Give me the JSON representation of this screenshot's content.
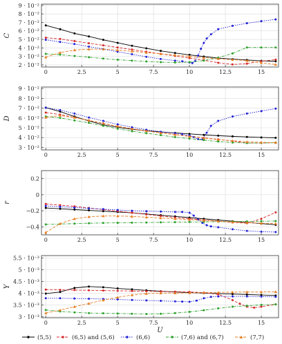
{
  "chart_data": [
    {
      "type": "line",
      "ylabel": "C",
      "xlabel": "",
      "xlim": [
        -0.3,
        16.2
      ],
      "ylim": [
        0.0175,
        0.0915
      ],
      "xticks": [
        0,
        2.5,
        5,
        7.5,
        10,
        12.5,
        15
      ],
      "xtick_labels": [
        "0",
        "2.5",
        "5",
        "7.5",
        "10",
        "12.5",
        "15"
      ],
      "yticks": [
        0.02,
        0.03,
        0.04,
        0.05,
        0.06,
        0.07,
        0.08,
        0.09
      ],
      "ytick_labels": [
        "2 · 10⁻²",
        "3 · 10⁻²",
        "4 · 10⁻²",
        "5 · 10⁻²",
        "6 · 10⁻²",
        "7 · 10⁻²",
        "8 · 10⁻²",
        "9 · 10⁻²"
      ],
      "grid": true,
      "series": [
        {
          "name": "(5,5)",
          "x": [
            0,
            1,
            2,
            3,
            4,
            5,
            6,
            7,
            8,
            9,
            10,
            11,
            12,
            13,
            14,
            15,
            16
          ],
          "y": [
            0.0665,
            0.062,
            0.057,
            0.0535,
            0.0495,
            0.046,
            0.0425,
            0.0395,
            0.0365,
            0.034,
            0.0318,
            0.0298,
            0.028,
            0.0268,
            0.0258,
            0.0248,
            0.0242
          ]
        },
        {
          "name": "(6,5) and (5,6)",
          "x": [
            0,
            1,
            2,
            3,
            4,
            5,
            6,
            7,
            8,
            9,
            10,
            11,
            12,
            13,
            14,
            15,
            16
          ],
          "y": [
            0.052,
            0.0505,
            0.048,
            0.0455,
            0.043,
            0.0405,
            0.038,
            0.0355,
            0.033,
            0.0305,
            0.028,
            0.0255,
            0.0225,
            0.0205,
            0.0215,
            0.0242,
            0.0262
          ]
        },
        {
          "name": "(6,6)",
          "x": [
            0,
            1,
            2,
            3,
            4,
            5,
            6,
            7,
            8,
            9,
            9.5,
            10,
            10.2,
            10.4,
            10.6,
            10.8,
            11,
            11.2,
            11.5,
            12,
            13,
            14,
            15,
            16
          ],
          "y": [
            0.0495,
            0.047,
            0.0445,
            0.0415,
            0.0385,
            0.0355,
            0.0325,
            0.0295,
            0.027,
            0.025,
            0.0242,
            0.0228,
            0.0222,
            0.0245,
            0.031,
            0.039,
            0.046,
            0.051,
            0.056,
            0.062,
            0.066,
            0.069,
            0.0715,
            0.0735
          ]
        },
        {
          "name": "(7,6) and (6,7)",
          "x": [
            0,
            1,
            2,
            3,
            4,
            5,
            6,
            7,
            8,
            9,
            10,
            11,
            12,
            13,
            14,
            15,
            16
          ],
          "y": [
            0.033,
            0.032,
            0.0305,
            0.029,
            0.0275,
            0.026,
            0.025,
            0.024,
            0.0232,
            0.0228,
            0.0232,
            0.025,
            0.0285,
            0.0335,
            0.0405,
            0.0405,
            0.0405
          ]
        },
        {
          "name": "(7,7)",
          "x": [
            0,
            1,
            2,
            3,
            4,
            5,
            6,
            7,
            8,
            9,
            10,
            11,
            12,
            13,
            14,
            15,
            16
          ],
          "y": [
            0.029,
            0.0345,
            0.0375,
            0.0385,
            0.0385,
            0.0375,
            0.036,
            0.0345,
            0.033,
            0.0315,
            0.03,
            0.0285,
            0.0272,
            0.0262,
            0.025,
            0.0225,
            0.0205
          ]
        }
      ]
    },
    {
      "type": "line",
      "ylabel": "D",
      "xlabel": "",
      "xlim": [
        -0.3,
        16.2
      ],
      "ylim": [
        0.0275,
        0.0915
      ],
      "xticks": [
        0,
        2.5,
        5,
        7.5,
        10,
        12.5,
        15
      ],
      "xtick_labels": [
        "0",
        "2.5",
        "5",
        "7.5",
        "10",
        "12.5",
        "15"
      ],
      "yticks": [
        0.03,
        0.04,
        0.05,
        0.06,
        0.07,
        0.08,
        0.09
      ],
      "ytick_labels": [
        "3 · 10⁻²",
        "4 · 10⁻²",
        "5 · 10⁻²",
        "6 · 10⁻²",
        "7 · 10⁻²",
        "8 · 10⁻²",
        "9 · 10⁻²"
      ],
      "grid": true,
      "series": [
        {
          "name": "(5,5)",
          "x": [
            0,
            1,
            2,
            3,
            4,
            5,
            6,
            7,
            8,
            9,
            10,
            11,
            12,
            13,
            14,
            15,
            16
          ],
          "y": [
            0.0705,
            0.0665,
            0.0615,
            0.057,
            0.053,
            0.0505,
            0.0485,
            0.047,
            0.0458,
            0.0448,
            0.0438,
            0.0428,
            0.042,
            0.0413,
            0.0407,
            0.0402,
            0.0398
          ]
        },
        {
          "name": "(6,5) and (5,6)",
          "x": [
            0,
            1,
            2,
            3,
            4,
            5,
            6,
            7,
            8,
            9,
            10,
            11,
            12,
            13,
            14,
            15,
            16
          ],
          "y": [
            0.0655,
            0.0635,
            0.0605,
            0.0575,
            0.0545,
            0.0515,
            0.049,
            0.0468,
            0.045,
            0.0432,
            0.0415,
            0.0398,
            0.0382,
            0.0365,
            0.0345,
            0.0345,
            0.035
          ]
        },
        {
          "name": "(6,6)",
          "x": [
            0,
            1,
            2,
            3,
            4,
            5,
            6,
            7,
            8,
            9,
            9.5,
            10,
            10.3,
            10.6,
            10.9,
            11.2,
            11.5,
            12,
            13,
            14,
            15,
            16
          ],
          "y": [
            0.0705,
            0.068,
            0.0645,
            0.0605,
            0.057,
            0.0535,
            0.0505,
            0.048,
            0.046,
            0.0445,
            0.0435,
            0.0422,
            0.0405,
            0.0385,
            0.0382,
            0.045,
            0.052,
            0.057,
            0.0615,
            0.0645,
            0.067,
            0.0695
          ]
        },
        {
          "name": "(7,6) and (6,7)",
          "x": [
            0,
            1,
            2,
            3,
            4,
            5,
            6,
            7,
            8,
            9,
            10,
            11,
            12,
            13,
            14,
            15,
            16
          ],
          "y": [
            0.0615,
            0.06,
            0.0575,
            0.055,
            0.052,
            0.049,
            0.0465,
            0.0445,
            0.0425,
            0.0405,
            0.039,
            0.0375,
            0.036,
            0.035,
            0.0345,
            0.0345,
            0.0348
          ]
        },
        {
          "name": "(7,7)",
          "x": [
            0,
            1,
            2,
            3,
            4,
            5,
            6,
            7,
            8,
            9,
            10,
            11,
            12,
            13,
            14,
            15,
            16
          ],
          "y": [
            0.0605,
            0.0625,
            0.0605,
            0.0575,
            0.0545,
            0.0515,
            0.049,
            0.0468,
            0.0448,
            0.043,
            0.0412,
            0.0395,
            0.038,
            0.0368,
            0.0358,
            0.0352,
            0.0348
          ]
        }
      ]
    },
    {
      "type": "line",
      "ylabel": "r",
      "xlabel": "",
      "xlim": [
        -0.3,
        16.2
      ],
      "ylim": [
        -0.5,
        0.3
      ],
      "xticks": [
        0,
        2.5,
        5,
        7.5,
        10,
        12.5,
        15
      ],
      "xtick_labels": [
        "0",
        "2.5",
        "5",
        "7.5",
        "10",
        "12.5",
        "15"
      ],
      "yticks": [
        -0.4,
        -0.2,
        0,
        0.2
      ],
      "ytick_labels": [
        "−0.4",
        "−0.2",
        "0",
        "0.2"
      ],
      "grid": true,
      "series": [
        {
          "name": "(5,5)",
          "x": [
            0,
            1,
            2,
            3,
            4,
            5,
            6,
            7,
            8,
            9,
            10,
            11,
            12,
            13,
            14,
            15,
            16
          ],
          "y": [
            -0.165,
            -0.175,
            -0.185,
            -0.195,
            -0.205,
            -0.215,
            -0.225,
            -0.24,
            -0.255,
            -0.27,
            -0.285,
            -0.3,
            -0.315,
            -0.33,
            -0.345,
            -0.36,
            -0.375
          ]
        },
        {
          "name": "(6,5) and (5,6)",
          "x": [
            0,
            1,
            2,
            3,
            4,
            5,
            6,
            7,
            8,
            9,
            10,
            11,
            12,
            13,
            14,
            15,
            16
          ],
          "y": [
            -0.115,
            -0.13,
            -0.145,
            -0.165,
            -0.185,
            -0.205,
            -0.225,
            -0.245,
            -0.265,
            -0.285,
            -0.3,
            -0.315,
            -0.33,
            -0.345,
            -0.355,
            -0.3,
            -0.22
          ]
        },
        {
          "name": "(6,6)",
          "x": [
            0,
            1,
            2,
            3,
            4,
            5,
            6,
            7,
            8,
            9,
            9.5,
            10,
            10.3,
            10.6,
            10.9,
            11.2,
            11.5,
            12,
            13,
            14,
            15,
            16
          ],
          "y": [
            -0.14,
            -0.15,
            -0.16,
            -0.17,
            -0.18,
            -0.19,
            -0.2,
            -0.205,
            -0.21,
            -0.215,
            -0.215,
            -0.225,
            -0.26,
            -0.31,
            -0.35,
            -0.38,
            -0.395,
            -0.405,
            -0.43,
            -0.45,
            -0.46,
            -0.465
          ]
        },
        {
          "name": "(7,6) and (6,7)",
          "x": [
            0,
            1,
            2,
            3,
            4,
            5,
            6,
            7,
            8,
            9,
            10,
            11,
            12,
            13,
            14,
            15,
            16
          ],
          "y": [
            -0.37,
            -0.365,
            -0.36,
            -0.355,
            -0.352,
            -0.35,
            -0.348,
            -0.346,
            -0.344,
            -0.342,
            -0.34,
            -0.338,
            -0.336,
            -0.334,
            -0.332,
            -0.33,
            -0.328
          ]
        },
        {
          "name": "(7,7)",
          "x": [
            0,
            1,
            2,
            3,
            4,
            5,
            6,
            7,
            8,
            9,
            10,
            11,
            12,
            13,
            14,
            15,
            16
          ],
          "y": [
            -0.47,
            -0.36,
            -0.3,
            -0.275,
            -0.265,
            -0.265,
            -0.27,
            -0.28,
            -0.29,
            -0.3,
            -0.31,
            -0.32,
            -0.33,
            -0.34,
            -0.348,
            -0.355,
            -0.36
          ]
        }
      ]
    },
    {
      "type": "line",
      "ylabel": "Y",
      "xlabel": "U",
      "xlim": [
        -0.3,
        16.2
      ],
      "ylim": [
        0.00295,
        0.0056
      ],
      "xticks": [
        0,
        2.5,
        5,
        7.5,
        10,
        12.5,
        15
      ],
      "xtick_labels": [
        "0",
        "2.5",
        "5",
        "7.5",
        "10",
        "12.5",
        "15"
      ],
      "yticks": [
        0.003,
        0.0035,
        0.004,
        0.0045,
        0.005,
        0.0055
      ],
      "ytick_labels": [
        "3 · 10⁻³",
        "3.5 · 10⁻³",
        "4 · 10⁻³",
        "4.5 · 10⁻³",
        "5 · 10⁻³",
        "5.5 · 10⁻³"
      ],
      "grid": true,
      "series": [
        {
          "name": "(5,5)",
          "x": [
            0,
            1,
            2,
            3,
            4,
            5,
            6,
            7,
            8,
            9,
            10,
            11,
            12,
            13,
            14,
            15,
            16
          ],
          "y": [
            0.00398,
            0.00405,
            0.00422,
            0.00428,
            0.00425,
            0.0042,
            0.00416,
            0.00412,
            0.00408,
            0.00405,
            0.00402,
            0.004,
            0.00398,
            0.00396,
            0.00394,
            0.00392,
            0.0039
          ]
        },
        {
          "name": "(6,5) and (5,6)",
          "x": [
            0,
            1,
            2,
            3,
            4,
            5,
            6,
            7,
            8,
            9,
            10,
            11,
            12,
            13,
            13.5,
            14,
            14.5,
            15,
            16
          ],
          "y": [
            0.00415,
            0.00414,
            0.00413,
            0.00412,
            0.00411,
            0.0041,
            0.00409,
            0.00408,
            0.00407,
            0.00406,
            0.00405,
            0.00402,
            0.00395,
            0.0037,
            0.00355,
            0.00342,
            0.00338,
            0.00342,
            0.00352
          ]
        },
        {
          "name": "(6,6)",
          "x": [
            0,
            1,
            2,
            3,
            4,
            5,
            6,
            7,
            8,
            9,
            9.5,
            10,
            10.5,
            11,
            11.5,
            12,
            13,
            14,
            15,
            16
          ],
          "y": [
            0.00378,
            0.00378,
            0.00377,
            0.00376,
            0.00375,
            0.00373,
            0.00371,
            0.00369,
            0.00367,
            0.00365,
            0.00364,
            0.00363,
            0.00368,
            0.00378,
            0.00384,
            0.00386,
            0.00386,
            0.00386,
            0.00385,
            0.00384
          ]
        },
        {
          "name": "(7,6) and (6,7)",
          "x": [
            0,
            1,
            2,
            3,
            4,
            5,
            6,
            7,
            8,
            9,
            10,
            11,
            12,
            13,
            14,
            15,
            16
          ],
          "y": [
            0.00328,
            0.00322,
            0.00318,
            0.00315,
            0.00314,
            0.00313,
            0.00312,
            0.00311,
            0.00312,
            0.00315,
            0.0032,
            0.00327,
            0.00335,
            0.00342,
            0.00346,
            0.0035,
            0.00352
          ]
        },
        {
          "name": "(7,7)",
          "x": [
            0,
            1,
            2,
            3,
            4,
            5,
            6,
            7,
            8,
            9,
            10,
            11,
            12,
            13,
            14,
            15,
            16
          ],
          "y": [
            0.00315,
            0.00328,
            0.00342,
            0.00356,
            0.0037,
            0.00382,
            0.00392,
            0.00398,
            0.004,
            0.004,
            0.00401,
            0.00402,
            0.00403,
            0.00404,
            0.00405,
            0.00405,
            0.00406
          ]
        }
      ]
    }
  ],
  "legend": {
    "placement": "bottom",
    "items": [
      {
        "label": "(5,5)",
        "color": "#000000",
        "marker": "circle",
        "dash": "solid"
      },
      {
        "label": "(6,5) and (5,6)",
        "color": "#d62728",
        "marker": "circle",
        "dash": "dashed"
      },
      {
        "label": "(6,6)",
        "color": "#1f1fd6",
        "marker": "circle",
        "dash": "dotted"
      },
      {
        "label": "(7,6) and (6,7)",
        "color": "#2ca02c",
        "marker": "circle",
        "dash": "dashdot"
      },
      {
        "label": "(7,7)",
        "color": "#e67e22",
        "marker": "triangle",
        "dash": "dashed"
      }
    ]
  }
}
